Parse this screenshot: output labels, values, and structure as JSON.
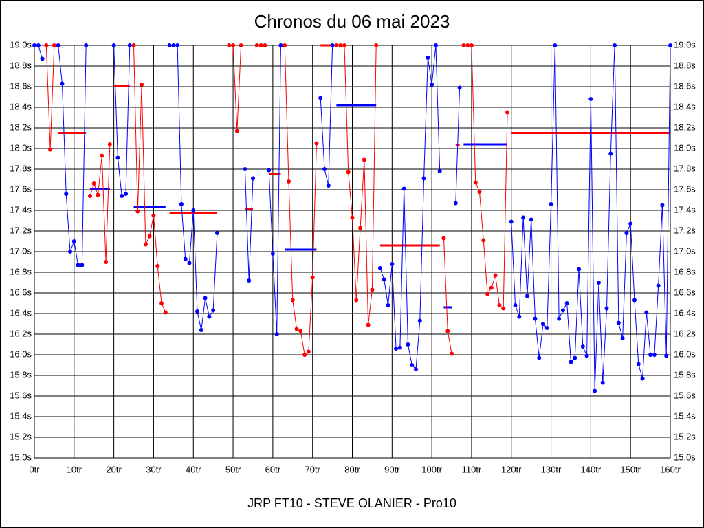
{
  "chart_data": {
    "type": "line",
    "title": "Chronos du 06 mai 2023",
    "x_label": "JRP FT10 - STEVE OLANIER - Pro10",
    "xlim": [
      0,
      160
    ],
    "xticks": [
      {
        "value": 0,
        "label": "0tr"
      },
      {
        "value": 10,
        "label": "10tr"
      },
      {
        "value": 20,
        "label": "20tr"
      },
      {
        "value": 30,
        "label": "30tr"
      },
      {
        "value": 40,
        "label": "40tr"
      },
      {
        "value": 50,
        "label": "50tr"
      },
      {
        "value": 60,
        "label": "60tr"
      },
      {
        "value": 70,
        "label": "70tr"
      },
      {
        "value": 80,
        "label": "80tr"
      },
      {
        "value": 90,
        "label": "90tr"
      },
      {
        "value": 100,
        "label": "100tr"
      },
      {
        "value": 110,
        "label": "110tr"
      },
      {
        "value": 120,
        "label": "120tr"
      },
      {
        "value": 130,
        "label": "130tr"
      },
      {
        "value": 140,
        "label": "140tr"
      },
      {
        "value": 150,
        "label": "150tr"
      },
      {
        "value": 160,
        "label": "160tr"
      }
    ],
    "ylim": [
      15.0,
      19.0
    ],
    "yticks": [
      {
        "value": 15.0,
        "label": "15.0s"
      },
      {
        "value": 15.2,
        "label": "15.2s"
      },
      {
        "value": 15.4,
        "label": "15.4s"
      },
      {
        "value": 15.6,
        "label": "15.6s"
      },
      {
        "value": 15.8,
        "label": "15.8s"
      },
      {
        "value": 16.0,
        "label": "16.0s"
      },
      {
        "value": 16.2,
        "label": "16.2s"
      },
      {
        "value": 16.4,
        "label": "16.4s"
      },
      {
        "value": 16.6,
        "label": "16.6s"
      },
      {
        "value": 16.8,
        "label": "16.8s"
      },
      {
        "value": 17.0,
        "label": "17.0s"
      },
      {
        "value": 17.2,
        "label": "17.2s"
      },
      {
        "value": 17.4,
        "label": "17.4s"
      },
      {
        "value": 17.6,
        "label": "17.6s"
      },
      {
        "value": 17.8,
        "label": "17.8s"
      },
      {
        "value": 18.0,
        "label": "18.0s"
      },
      {
        "value": 18.2,
        "label": "18.2s"
      },
      {
        "value": 18.4,
        "label": "18.4s"
      },
      {
        "value": 18.6,
        "label": "18.6s"
      },
      {
        "value": 18.8,
        "label": "18.8s"
      },
      {
        "value": 19.0,
        "label": "19.0s"
      }
    ],
    "grid": true,
    "series": [
      {
        "color": "#0000ff",
        "x": [
          0,
          1,
          2
        ],
        "values": [
          19,
          19,
          18.87
        ]
      },
      {
        "color": "#ff0000",
        "x": [
          3,
          4,
          5
        ],
        "values": [
          19,
          17.99,
          19
        ]
      },
      {
        "color": "#0000ff",
        "x": [
          6,
          7,
          8,
          9,
          10,
          11,
          12,
          13
        ],
        "values": [
          19,
          18.63,
          17.56,
          17.0,
          17.1,
          16.87,
          16.87,
          19
        ]
      },
      {
        "color": "#ff0000",
        "x": [
          14,
          15,
          16,
          17,
          18,
          19
        ],
        "values": [
          17.54,
          17.66,
          17.55,
          17.93,
          16.9,
          18.04
        ]
      },
      {
        "color": "#0000ff",
        "x": [
          20,
          21,
          22,
          23,
          24
        ],
        "values": [
          19,
          17.91,
          17.54,
          17.56,
          19
        ]
      },
      {
        "color": "#ff0000",
        "x": [
          25,
          26,
          27,
          28,
          29,
          30,
          31,
          32,
          33
        ],
        "values": [
          19,
          17.39,
          18.62,
          17.07,
          17.15,
          17.35,
          16.86,
          16.5,
          16.41
        ]
      },
      {
        "color": "#0000ff",
        "x": [
          34,
          35,
          36,
          37,
          38,
          39,
          40,
          41,
          42,
          43,
          44,
          45,
          46
        ],
        "values": [
          19,
          19,
          19,
          17.46,
          16.93,
          16.89,
          17.4,
          16.42,
          16.24,
          16.55,
          16.37,
          16.43,
          17.18
        ]
      },
      {
        "color": "#ff0000",
        "x": [
          49,
          50,
          51,
          52
        ],
        "values": [
          19,
          19,
          18.17,
          19
        ]
      },
      {
        "color": "#0000ff",
        "x": [
          53,
          54,
          55
        ],
        "values": [
          17.8,
          16.72,
          17.71
        ]
      },
      {
        "color": "#ff0000",
        "x": [
          56,
          57,
          58
        ],
        "values": [
          19,
          19,
          19
        ]
      },
      {
        "color": "#0000ff",
        "x": [
          59,
          60,
          61,
          62
        ],
        "values": [
          17.79,
          16.98,
          16.2,
          19
        ]
      },
      {
        "color": "#ff0000",
        "x": [
          63,
          64,
          65,
          66,
          67,
          68,
          69,
          70,
          71
        ],
        "values": [
          19,
          17.68,
          16.53,
          16.25,
          16.23,
          16.0,
          16.03,
          16.75,
          18.05
        ]
      },
      {
        "color": "#0000ff",
        "x": [
          72,
          73,
          74,
          75
        ],
        "values": [
          18.49,
          17.8,
          17.64,
          19
        ]
      },
      {
        "color": "#ff0000",
        "x": [
          76,
          77,
          78,
          79,
          80,
          81,
          82,
          83,
          84,
          85,
          86
        ],
        "values": [
          19,
          19,
          19,
          17.77,
          17.33,
          16.53,
          17.23,
          17.89,
          16.29,
          16.63,
          19
        ]
      },
      {
        "color": "#0000ff",
        "x": [
          87,
          88,
          89,
          90,
          91,
          92,
          93,
          94,
          95,
          96,
          97,
          98,
          99,
          100,
          101,
          102
        ],
        "values": [
          16.84,
          16.73,
          16.48,
          16.88,
          16.06,
          16.07,
          17.61,
          16.1,
          15.9,
          15.86,
          16.33,
          17.71,
          18.88,
          18.62,
          19,
          17.78
        ]
      },
      {
        "color": "#ff0000",
        "x": [
          103,
          104,
          105
        ],
        "values": [
          17.13,
          16.23,
          16.01
        ]
      },
      {
        "color": "#0000ff",
        "x": [
          106,
          107
        ],
        "values": [
          17.47,
          18.59
        ]
      },
      {
        "color": "#ff0000",
        "x": [
          108,
          109,
          110,
          111,
          112,
          113,
          114,
          115,
          116,
          117,
          118,
          119
        ],
        "values": [
          19,
          19,
          19,
          17.67,
          17.58,
          17.11,
          16.59,
          16.65,
          16.77,
          16.48,
          16.45,
          18.35
        ]
      },
      {
        "color": "#0000ff",
        "x": [
          120,
          121,
          122,
          123,
          124,
          125,
          126,
          127,
          128,
          129,
          130,
          131,
          132,
          133,
          134,
          135,
          136,
          137,
          138,
          139,
          140,
          141,
          142,
          143,
          144,
          145,
          146,
          147,
          148,
          149,
          150,
          151,
          152,
          153,
          154,
          155,
          156,
          157,
          158,
          159,
          160
        ],
        "values": [
          17.29,
          16.48,
          16.37,
          17.33,
          16.57,
          17.31,
          16.35,
          15.97,
          16.3,
          16.26,
          17.46,
          19,
          16.35,
          16.43,
          16.5,
          15.93,
          15.97,
          16.83,
          16.08,
          15.99,
          18.48,
          15.65,
          16.7,
          15.73,
          16.45,
          17.95,
          19,
          16.31,
          16.16,
          17.18,
          17.27,
          16.53,
          15.91,
          15.77,
          16.41,
          16.0,
          16.0,
          16.67,
          17.45,
          15.99,
          19
        ]
      }
    ],
    "averages": [
      {
        "color": "#ff0000",
        "x": [
          6,
          13
        ],
        "value": 18.15
      },
      {
        "color": "#0000ff",
        "x": [
          14,
          19
        ],
        "value": 17.61
      },
      {
        "color": "#ff0000",
        "x": [
          20,
          24
        ],
        "value": 18.61
      },
      {
        "color": "#0000ff",
        "x": [
          25,
          33
        ],
        "value": 17.43
      },
      {
        "color": "#ff0000",
        "x": [
          34,
          46
        ],
        "value": 17.37
      },
      {
        "color": "#ff0000",
        "x": [
          53,
          55
        ],
        "value": 17.41
      },
      {
        "color": "#ff0000",
        "x": [
          59,
          62
        ],
        "value": 17.75
      },
      {
        "color": "#0000ff",
        "x": [
          63,
          71
        ],
        "value": 17.02
      },
      {
        "color": "#ff0000",
        "x": [
          72,
          75
        ],
        "value": 19.0
      },
      {
        "color": "#0000ff",
        "x": [
          76,
          86
        ],
        "value": 18.42
      },
      {
        "color": "#ff0000",
        "x": [
          87,
          102
        ],
        "value": 17.06
      },
      {
        "color": "#0000ff",
        "x": [
          103,
          105
        ],
        "value": 16.46
      },
      {
        "color": "#ff0000",
        "x": [
          106,
          107
        ],
        "value": 18.03
      },
      {
        "color": "#0000ff",
        "x": [
          108,
          119
        ],
        "value": 18.04
      },
      {
        "color": "#ff0000",
        "x": [
          120,
          160
        ],
        "value": 18.15
      }
    ]
  }
}
